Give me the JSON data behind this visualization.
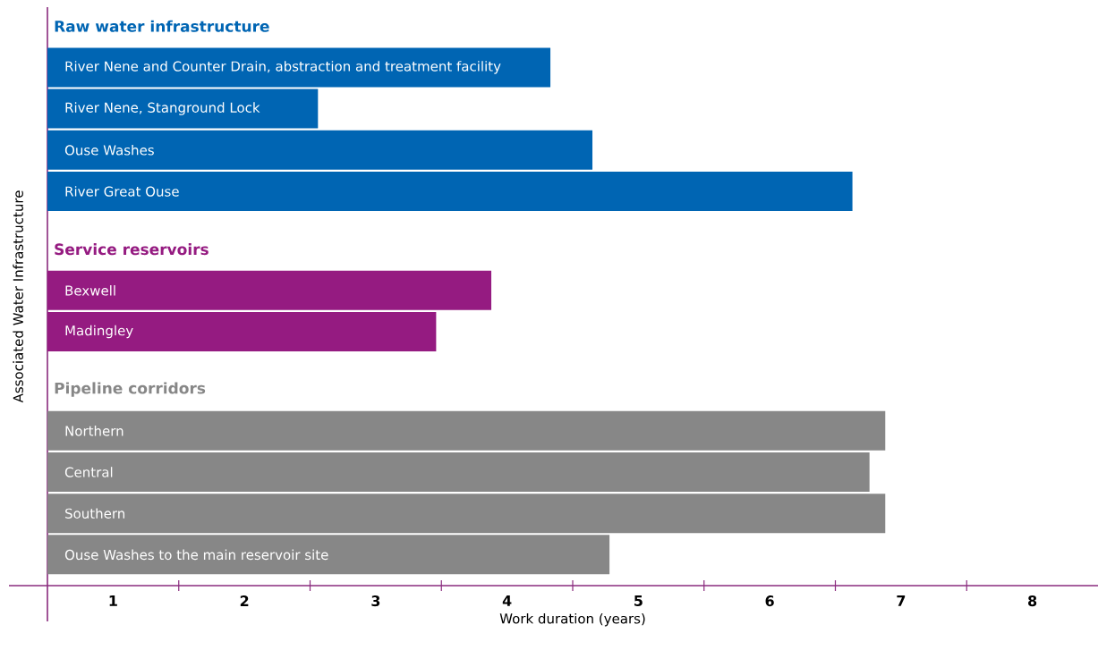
{
  "chart_data": {
    "type": "bar",
    "orientation": "horizontal",
    "xlabel": "Work duration (years)",
    "ylabel": "Associated Water Infrastructure",
    "categories": [
      "River Nene and Counter Drain, abstraction and treatment facility",
      "River Nene, Stanground Lock",
      "Ouse Washes",
      "River Great Ouse",
      "Bexwell",
      "Madingley",
      "Northern",
      "Central",
      "Southern",
      "Ouse Washes to the main reservoir site"
    ],
    "series": [
      {
        "name": "Raw water infrastructure",
        "color": "#0065b3",
        "values": [
          3.83,
          2.06,
          4.15,
          6.13,
          null,
          null,
          null,
          null,
          null,
          null
        ]
      },
      {
        "name": "Service reservoirs",
        "color": "#951b81",
        "values": [
          null,
          null,
          null,
          null,
          3.38,
          2.96,
          null,
          null,
          null,
          null
        ]
      },
      {
        "name": "Pipeline corridors",
        "color": "#878787",
        "values": [
          null,
          null,
          null,
          null,
          null,
          null,
          6.38,
          6.26,
          6.38,
          4.28
        ]
      }
    ],
    "xlim": [
      0,
      8
    ],
    "xticks": [
      {
        "value": 0.5,
        "label": "1"
      },
      {
        "value": 1.5,
        "label": "2"
      },
      {
        "value": 2.5,
        "label": "3"
      },
      {
        "value": 3.5,
        "label": "4"
      },
      {
        "value": 4.5,
        "label": "5"
      },
      {
        "value": 5.5,
        "label": "6"
      },
      {
        "value": 6.5,
        "label": "7"
      },
      {
        "value": 7.5,
        "label": "8"
      }
    ],
    "grid": false
  }
}
